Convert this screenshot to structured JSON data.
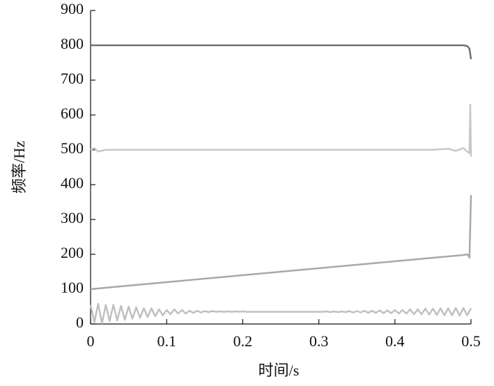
{
  "chart_data": {
    "type": "line",
    "xlabel": "时间/s",
    "ylabel": "频率/Hz",
    "xlim": [
      0,
      0.5
    ],
    "xticks": [
      0,
      0.1,
      0.2,
      0.3,
      0.4,
      0.5
    ],
    "ylim": [
      0,
      900
    ],
    "yticks": [
      0,
      100,
      200,
      300,
      400,
      500,
      600,
      700,
      800,
      900
    ],
    "grid": false,
    "series": [
      {
        "color": "#707070",
        "x": [
          0,
          0.1,
          0.2,
          0.3,
          0.4,
          0.49,
          0.495,
          0.498,
          0.5
        ],
        "values": [
          800,
          800,
          800,
          800,
          800,
          800,
          798,
          790,
          760
        ]
      },
      {
        "color": "#c8c8c8",
        "x": [
          0,
          0.005,
          0.01,
          0.02,
          0.1,
          0.2,
          0.3,
          0.4,
          0.45,
          0.47,
          0.48,
          0.49,
          0.495,
          0.498,
          0.499,
          0.5
        ],
        "values": [
          500,
          505,
          495,
          500,
          500,
          500,
          500,
          500,
          500,
          503,
          497,
          505,
          495,
          490,
          630,
          480
        ]
      },
      {
        "color": "#a8a8a8",
        "x": [
          0,
          0.49,
          0.495,
          0.497,
          0.498,
          0.5
        ],
        "values": [
          100,
          198,
          200,
          195,
          190,
          370
        ]
      },
      {
        "color": "#c0c0c0",
        "x": [
          0,
          0.005,
          0.01,
          0.015,
          0.02,
          0.025,
          0.03,
          0.035,
          0.04,
          0.045,
          0.05,
          0.055,
          0.06,
          0.065,
          0.07,
          0.075,
          0.08,
          0.085,
          0.09,
          0.095,
          0.1,
          0.105,
          0.11,
          0.115,
          0.12,
          0.125,
          0.13,
          0.135,
          0.14,
          0.145,
          0.15,
          0.155,
          0.16,
          0.165,
          0.17,
          0.175,
          0.18,
          0.185,
          0.19,
          0.195,
          0.2,
          0.205,
          0.21,
          0.215,
          0.22,
          0.225,
          0.23,
          0.235,
          0.24,
          0.245,
          0.25,
          0.255,
          0.26,
          0.265,
          0.27,
          0.275,
          0.28,
          0.285,
          0.29,
          0.295,
          0.3,
          0.305,
          0.31,
          0.315,
          0.32,
          0.325,
          0.33,
          0.335,
          0.34,
          0.345,
          0.35,
          0.355,
          0.36,
          0.365,
          0.37,
          0.375,
          0.38,
          0.385,
          0.39,
          0.395,
          0.4,
          0.405,
          0.41,
          0.415,
          0.42,
          0.425,
          0.43,
          0.435,
          0.44,
          0.445,
          0.45,
          0.455,
          0.46,
          0.465,
          0.47,
          0.475,
          0.48,
          0.485,
          0.49,
          0.495,
          0.5
        ],
        "values": [
          55,
          5,
          58,
          2,
          55,
          8,
          55,
          10,
          52,
          12,
          50,
          15,
          48,
          18,
          45,
          20,
          45,
          22,
          42,
          25,
          40,
          28,
          42,
          30,
          40,
          30,
          38,
          32,
          38,
          33,
          37,
          34,
          37,
          35,
          36,
          35,
          36,
          35,
          36,
          35,
          36,
          35,
          35,
          35,
          35,
          35,
          35,
          35,
          35,
          35,
          35,
          35,
          35,
          35,
          35,
          35,
          35,
          35,
          35,
          35,
          35,
          35,
          36,
          34,
          36,
          34,
          36,
          34,
          37,
          33,
          37,
          33,
          38,
          32,
          38,
          32,
          39,
          31,
          39,
          31,
          40,
          30,
          40,
          30,
          42,
          28,
          42,
          28,
          44,
          27,
          44,
          26,
          45,
          25,
          45,
          25,
          46,
          24,
          46,
          25,
          45
        ]
      }
    ]
  }
}
